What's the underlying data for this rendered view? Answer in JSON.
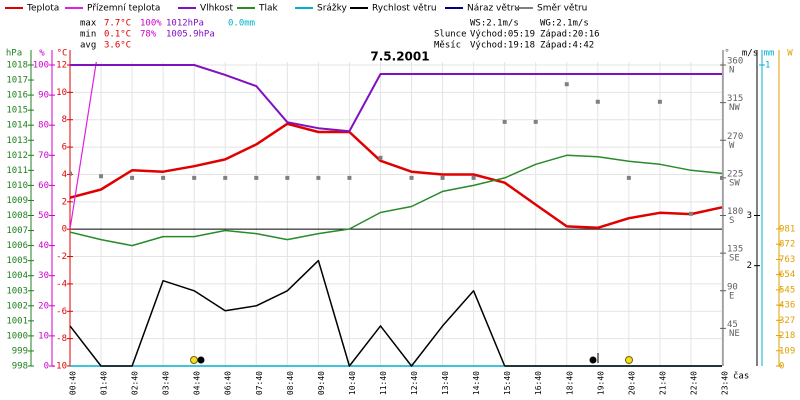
{
  "chart_data": {
    "type": "line",
    "title": "7.5.2001",
    "x_label": "čas",
    "categories": [
      "00:40",
      "01:40",
      "02:40",
      "03:40",
      "04:40",
      "06:40",
      "07:40",
      "08:40",
      "09:40",
      "10:40",
      "11:40",
      "12:40",
      "13:40",
      "14:40",
      "15:40",
      "16:40",
      "18:40",
      "19:40",
      "20:40",
      "21:40",
      "22:40",
      "23:40"
    ],
    "axes": {
      "hpa": {
        "label": "hPa",
        "color": "#208020",
        "ylim": [
          998,
          1018
        ],
        "yticks": [
          998,
          999,
          1000,
          1001,
          1002,
          1003,
          1004,
          1005,
          1006,
          1007,
          1008,
          1009,
          1010,
          1011,
          1012,
          1013,
          1014,
          1015,
          1016,
          1017,
          1018
        ]
      },
      "pct": {
        "label": "%",
        "color": "#d000d0",
        "ylim": [
          0,
          100
        ],
        "yticks": [
          0,
          10,
          20,
          30,
          40,
          50,
          60,
          70,
          80,
          90,
          100
        ]
      },
      "temp": {
        "label": "°C",
        "color": "#e00000",
        "ylim": [
          -10,
          12
        ],
        "yticks": [
          -10,
          -8,
          -6,
          -4,
          -2,
          0,
          2,
          4,
          6,
          8,
          10,
          12
        ],
        "grid": true
      },
      "dir": {
        "label": "°",
        "color": "#606060",
        "ylim": [
          0,
          360
        ],
        "yticks": [
          45,
          90,
          135,
          180,
          225,
          270,
          315,
          360
        ],
        "compass": [
          "NE",
          "E",
          "SE",
          "S",
          "SW",
          "W",
          "NW",
          "N"
        ]
      },
      "ms": {
        "label": "m/s",
        "color": "#000000",
        "ylim": [
          0,
          6
        ],
        "yticks": [
          2,
          3
        ]
      },
      "mm": {
        "label": "mm",
        "color": "#00b0d0",
        "ylim": [
          0,
          1
        ],
        "yticks": [
          1
        ]
      },
      "w": {
        "label": "W",
        "color": "#e0a000",
        "ylim": [
          0,
          2155
        ],
        "yticks": [
          0,
          109,
          218,
          327,
          436,
          545,
          654,
          763,
          872,
          981
        ]
      }
    },
    "series": [
      {
        "name": "Teplota",
        "color": "#e00000",
        "axis": "temp",
        "width": 2.5,
        "values": [
          2.3,
          2.9,
          4.3,
          4.2,
          4.6,
          5.1,
          6.2,
          7.7,
          7.1,
          7.1,
          5.0,
          4.2,
          4.0,
          4.0,
          3.4,
          1.8,
          0.2,
          0.1,
          0.8,
          1.2,
          1.1,
          1.6
        ]
      },
      {
        "name": "Přízemní teplota",
        "color": "#e020e0",
        "axis": "temp",
        "width": 1.2,
        "values": [
          0.0,
          14.4,
          null,
          null,
          null,
          null,
          null,
          null,
          null,
          null,
          null,
          null,
          null,
          null,
          null,
          null,
          null,
          null,
          null,
          null,
          null,
          null
        ]
      },
      {
        "name": "Vlhkost",
        "color": "#8010c0",
        "axis": "pct",
        "width": 2,
        "values": [
          100,
          100,
          100,
          100,
          100,
          96.7,
          93,
          81,
          79,
          78,
          97,
          97,
          97,
          97,
          97,
          97,
          97,
          97,
          97,
          97,
          97,
          97
        ]
      },
      {
        "name": "Tlak",
        "color": "#2a8a2a",
        "axis": "hpa",
        "width": 1.5,
        "values": [
          1006.9,
          1006.4,
          1006.0,
          1006.6,
          1006.6,
          1007.0,
          1006.8,
          1006.4,
          1006.8,
          1007.1,
          1008.2,
          1008.6,
          1009.6,
          1010.0,
          1010.5,
          1011.4,
          1012.0,
          1011.9,
          1011.6,
          1011.4,
          1011.0,
          1010.8
        ]
      },
      {
        "name": "Srážky",
        "color": "#00b0d0",
        "axis": "mm",
        "width": 1.5,
        "values": [
          0,
          0,
          0,
          0,
          0,
          0,
          0,
          0,
          0,
          0,
          0,
          0,
          0,
          0,
          0,
          0,
          0,
          0,
          0,
          0,
          0,
          0
        ]
      },
      {
        "name": "Rychlost větru",
        "color": "#000000",
        "axis": "ms",
        "width": 1.5,
        "values": [
          0.8,
          0,
          0,
          1.7,
          1.5,
          1.1,
          1.2,
          1.5,
          2.1,
          0,
          0.8,
          0,
          0.8,
          1.5,
          0,
          0,
          0,
          0,
          0,
          0,
          0,
          0
        ]
      },
      {
        "name": "Náraz větru",
        "color": "#000080",
        "axis": "ms"
      },
      {
        "name": "Směr větru",
        "color": "#808080",
        "axis": "dir",
        "markers": true,
        "values": [
          230,
          227,
          225,
          225,
          225,
          225,
          225,
          225,
          225,
          225,
          249,
          225,
          225,
          225,
          292,
          292,
          337,
          316,
          225,
          316,
          182,
          225
        ]
      }
    ],
    "stats": {
      "max": {
        "label": "max",
        "temp": "7.7°C",
        "hum": "100%",
        "pres": "1012hPa",
        "rain": "0.0mm"
      },
      "min": {
        "label": "min",
        "temp": "0.1°C",
        "hum": "78%",
        "pres": "1005.9hPa"
      },
      "avg": {
        "label": "avg",
        "temp": "3.6°C"
      }
    },
    "info": {
      "ws": "WS:2.1m/s",
      "wg": "WG:2.1m/s",
      "sun": {
        "label": "Slunce",
        "rise": "Východ:05:19",
        "set": "Západ:20:16"
      },
      "moon": {
        "label": "Měsíc",
        "rise": "Východ:19:18",
        "set": "Západ:4:42"
      }
    }
  }
}
